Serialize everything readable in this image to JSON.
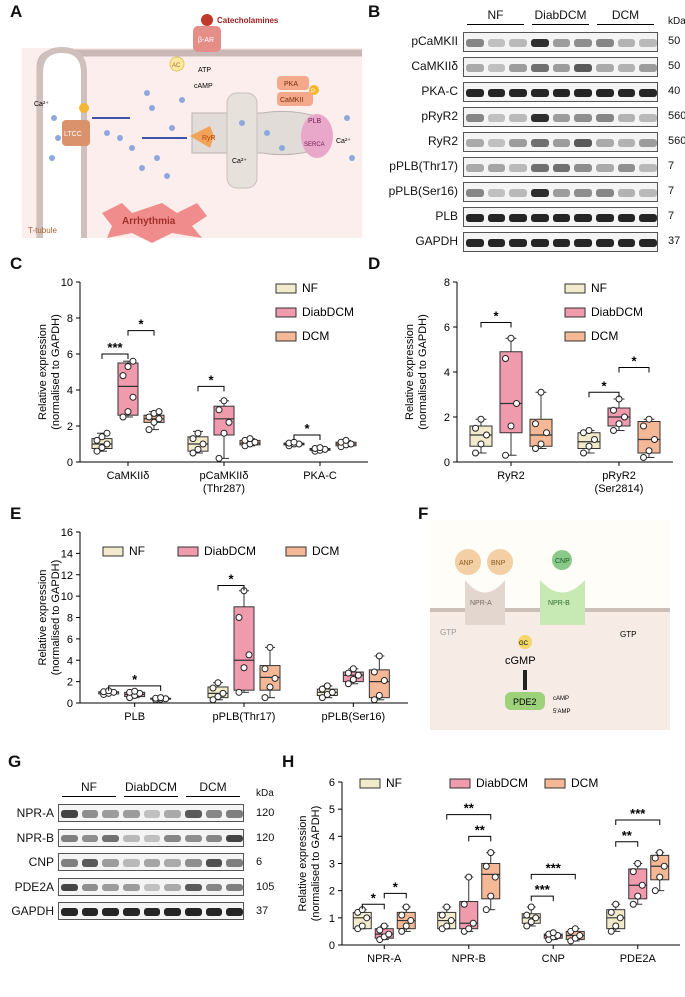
{
  "panel_letters": {
    "A": "A",
    "B": "B",
    "C": "C",
    "D": "D",
    "E": "E",
    "F": "F",
    "G": "G",
    "H": "H"
  },
  "schematic_A": {
    "catecholamines": "Catecholamines",
    "beta_ar": "β-AR",
    "ac": "AC",
    "atp": "ATP",
    "camp": "cAMP",
    "pka": "PKA",
    "camkii": "CaMKII",
    "ltcc": "LTCC",
    "ryr": "RyR",
    "plb": "PLB",
    "serca": "SERCA",
    "p": "P",
    "ca": "Ca²⁺",
    "ttubule": "T-tubule",
    "arrhythmia": "Arrhythmia"
  },
  "blot_B": {
    "groups": [
      "NF",
      "DiabDCM",
      "DCM"
    ],
    "kda": "kDa",
    "rows": [
      {
        "label": "pCaMKII",
        "kda": "50"
      },
      {
        "label": "CaMKIIδ",
        "kda": "50"
      },
      {
        "label": "PKA-C",
        "kda": "40"
      },
      {
        "label": "pRyR2",
        "kda": "560"
      },
      {
        "label": "RyR2",
        "kda": "560"
      },
      {
        "label": "pPLB(Thr17)",
        "kda": "7"
      },
      {
        "label": "pPLB(Ser16)",
        "kda": "7"
      },
      {
        "label": "PLB",
        "kda": "7"
      },
      {
        "label": "GAPDH",
        "kda": "37"
      }
    ]
  },
  "schematic_F": {
    "anp": "ANP",
    "bnp": "BNP",
    "cnp": "CNP",
    "npra": "NPR-A",
    "nprb": "NPR-B",
    "gtp": "GTP",
    "gc": "GC",
    "cgmp": "cGMP",
    "pde2": "PDE2",
    "camp": "cAMP",
    "five_amp": "5'AMP"
  },
  "blot_G": {
    "groups": [
      "NF",
      "DiabDCM",
      "DCM"
    ],
    "kda": "kDa",
    "rows": [
      {
        "label": "NPR-A",
        "kda": "120"
      },
      {
        "label": "NPR-B",
        "kda": "120"
      },
      {
        "label": "CNP",
        "kda": "6"
      },
      {
        "label": "PDE2A",
        "kda": "105"
      },
      {
        "label": "GAPDH",
        "kda": "37"
      }
    ]
  },
  "colors": {
    "NF": "#f1ebcc",
    "DiabDCM": "#ef9aad",
    "DCM": "#f5b896"
  },
  "chart_data": [
    {
      "panel": "C",
      "type": "box",
      "ylabel": "Relative expression\n(normalised to GAPDH)",
      "ylim": [
        0,
        10
      ],
      "yticks": [
        0,
        2,
        4,
        6,
        8,
        10
      ],
      "legend_position": "top-right",
      "series": [
        {
          "name": "NF"
        },
        {
          "name": "DiabDCM"
        },
        {
          "name": "DCM"
        }
      ],
      "categories": [
        "CaMKIIδ",
        "pCaMKIIδ\n(Thr287)",
        "PKA-C"
      ],
      "boxes": [
        [
          {
            "min": 0.6,
            "q1": 0.75,
            "med": 1.0,
            "q3": 1.3,
            "max": 1.6,
            "points": [
              0.6,
              0.8,
              1.0,
              1.2,
              1.4,
              1.6
            ]
          },
          {
            "min": 2.5,
            "q1": 2.6,
            "med": 4.2,
            "q3": 5.5,
            "max": 5.6,
            "points": [
              2.5,
              2.8,
              3.6,
              4.8,
              5.3,
              5.6
            ]
          },
          {
            "min": 1.8,
            "q1": 2.2,
            "med": 2.4,
            "q3": 2.6,
            "max": 2.8,
            "points": [
              1.8,
              2.2,
              2.4,
              2.5,
              2.7,
              2.8
            ]
          }
        ],
        [
          {
            "min": 0.5,
            "q1": 0.6,
            "med": 1.0,
            "q3": 1.4,
            "max": 1.7,
            "points": [
              0.5,
              0.7,
              1.0,
              1.3,
              1.6
            ]
          },
          {
            "min": 0.2,
            "q1": 1.5,
            "med": 2.4,
            "q3": 3.1,
            "max": 3.4,
            "points": [
              0.2,
              1.6,
              2.2,
              2.9,
              3.4
            ]
          },
          {
            "min": 0.9,
            "q1": 0.95,
            "med": 1.05,
            "q3": 1.2,
            "max": 1.3,
            "points": [
              0.9,
              1.0,
              1.1,
              1.2,
              1.3
            ]
          }
        ],
        [
          {
            "min": 0.9,
            "q1": 0.95,
            "med": 1.0,
            "q3": 1.05,
            "max": 1.1,
            "points": [
              0.9,
              1.0,
              1.0,
              1.05,
              1.1
            ]
          },
          {
            "min": 0.6,
            "q1": 0.65,
            "med": 0.7,
            "q3": 0.75,
            "max": 0.8,
            "points": [
              0.6,
              0.65,
              0.7,
              0.75,
              0.8
            ]
          },
          {
            "min": 0.85,
            "q1": 0.9,
            "med": 1.0,
            "q3": 1.1,
            "max": 1.2,
            "points": [
              0.85,
              0.95,
              1.0,
              1.1,
              1.2
            ]
          }
        ]
      ],
      "sig": [
        {
          "cat": 0,
          "from": 0,
          "to": 1,
          "y": 6.0,
          "label": "***"
        },
        {
          "cat": 0,
          "from": 1,
          "to": 2,
          "y": 7.3,
          "label": "*"
        },
        {
          "cat": 1,
          "from": 0,
          "to": 1,
          "y": 4.2,
          "label": "*"
        },
        {
          "cat": 2,
          "from": 0,
          "to": 1,
          "y": 1.5,
          "label": "*"
        }
      ]
    },
    {
      "panel": "D",
      "type": "box",
      "ylabel": "Relative expression\n(normalised to GAPDH)",
      "ylim": [
        0,
        8
      ],
      "yticks": [
        0,
        2,
        4,
        6,
        8
      ],
      "legend_position": "top-right",
      "series": [
        {
          "name": "NF"
        },
        {
          "name": "DiabDCM"
        },
        {
          "name": "DCM"
        }
      ],
      "categories": [
        "RyR2",
        "pRyR2\n(Ser2814)"
      ],
      "boxes": [
        [
          {
            "min": 0.4,
            "q1": 0.7,
            "med": 1.2,
            "q3": 1.6,
            "max": 1.9,
            "points": [
              0.4,
              0.8,
              1.2,
              1.5,
              1.9
            ]
          },
          {
            "min": 0.3,
            "q1": 1.3,
            "med": 2.6,
            "q3": 4.9,
            "max": 5.5,
            "points": [
              0.3,
              1.6,
              2.6,
              4.6,
              5.5
            ]
          },
          {
            "min": 0.6,
            "q1": 0.7,
            "med": 1.2,
            "q3": 1.9,
            "max": 3.1,
            "points": [
              0.6,
              0.8,
              1.3,
              1.7,
              3.1
            ]
          }
        ],
        [
          {
            "min": 0.4,
            "q1": 0.6,
            "med": 0.9,
            "q3": 1.3,
            "max": 1.4,
            "points": [
              0.4,
              0.7,
              1.0,
              1.3,
              1.4
            ]
          },
          {
            "min": 1.4,
            "q1": 1.6,
            "med": 2.0,
            "q3": 2.4,
            "max": 2.8,
            "points": [
              1.4,
              1.7,
              2.0,
              2.3,
              2.8
            ]
          },
          {
            "min": 0.2,
            "q1": 0.4,
            "med": 1.0,
            "q3": 1.8,
            "max": 1.9,
            "points": [
              0.2,
              0.5,
              1.0,
              1.6,
              1.9
            ]
          }
        ]
      ],
      "sig": [
        {
          "cat": 0,
          "from": 0,
          "to": 1,
          "y": 6.2,
          "label": "*"
        },
        {
          "cat": 1,
          "from": 0,
          "to": 1,
          "y": 3.1,
          "label": "*"
        },
        {
          "cat": 1,
          "from": 1,
          "to": 2,
          "y": 4.2,
          "label": "*"
        }
      ]
    },
    {
      "panel": "E",
      "type": "box",
      "ylabel": "Relative expression\n(normalised to GAPDH)",
      "ylim": [
        0,
        16
      ],
      "yticks": [
        0,
        2,
        4,
        6,
        8,
        10,
        12,
        14,
        16
      ],
      "legend_position": "top",
      "series": [
        {
          "name": "NF"
        },
        {
          "name": "DiabDCM"
        },
        {
          "name": "DCM"
        }
      ],
      "categories": [
        "PLB",
        "pPLB(Thr17)",
        "pPLB(Ser16)"
      ],
      "boxes": [
        [
          {
            "min": 0.8,
            "q1": 0.85,
            "med": 1.0,
            "q3": 1.05,
            "max": 1.15,
            "points": [
              0.8,
              0.9,
              1.0,
              1.05,
              1.15
            ]
          },
          {
            "min": 0.5,
            "q1": 0.6,
            "med": 0.8,
            "q3": 1.0,
            "max": 1.1,
            "points": [
              0.5,
              0.7,
              0.9,
              1.0,
              1.1
            ]
          },
          {
            "min": 0.3,
            "q1": 0.35,
            "med": 0.4,
            "q3": 0.45,
            "max": 0.5,
            "points": [
              0.3,
              0.35,
              0.4,
              0.45,
              0.5
            ]
          }
        ],
        [
          {
            "min": 0.3,
            "q1": 0.5,
            "med": 0.9,
            "q3": 1.5,
            "max": 1.9,
            "points": [
              0.3,
              0.6,
              0.9,
              1.4,
              1.9
            ]
          },
          {
            "min": 1.0,
            "q1": 1.2,
            "med": 4.0,
            "q3": 9.0,
            "max": 10.5,
            "points": [
              1.0,
              3.3,
              4.5,
              8.0,
              10.5
            ]
          },
          {
            "min": 0.5,
            "q1": 1.2,
            "med": 2.4,
            "q3": 3.5,
            "max": 5.2,
            "points": [
              0.5,
              1.5,
              2.3,
              3.2,
              5.2
            ]
          }
        ],
        [
          {
            "min": 0.5,
            "q1": 0.7,
            "med": 1.0,
            "q3": 1.3,
            "max": 1.6,
            "points": [
              0.5,
              0.8,
              1.0,
              1.3,
              1.6
            ]
          },
          {
            "min": 1.8,
            "q1": 2.0,
            "med": 2.6,
            "q3": 2.9,
            "max": 3.2,
            "points": [
              1.8,
              2.2,
              2.6,
              2.8,
              3.2
            ]
          },
          {
            "min": 0.3,
            "q1": 0.5,
            "med": 2.0,
            "q3": 3.1,
            "max": 4.4,
            "points": [
              0.3,
              0.7,
              2.1,
              2.9,
              4.4
            ]
          }
        ]
      ],
      "sig": [
        {
          "cat": 0,
          "from": 0,
          "to": 2,
          "y": 1.6,
          "label": "*"
        },
        {
          "cat": 1,
          "from": 0,
          "to": 1,
          "y": 11.0,
          "label": "*"
        }
      ]
    },
    {
      "panel": "H",
      "type": "box",
      "ylabel": "Relative expression\n(normalised to GAPDH)",
      "ylim": [
        0,
        6
      ],
      "yticks": [
        0,
        1,
        2,
        3,
        4,
        5,
        6
      ],
      "legend_position": "top",
      "series": [
        {
          "name": "NF"
        },
        {
          "name": "DiabDCM"
        },
        {
          "name": "DCM"
        }
      ],
      "categories": [
        "NPR-A",
        "NPR-B",
        "CNP",
        "PDE2A"
      ],
      "boxes": [
        [
          {
            "min": 0.6,
            "q1": 0.6,
            "med": 1.0,
            "q3": 1.2,
            "max": 1.3,
            "points": [
              0.6,
              0.7,
              1.0,
              1.2,
              1.3
            ]
          },
          {
            "min": 0.2,
            "q1": 0.25,
            "med": 0.4,
            "q3": 0.6,
            "max": 0.7,
            "points": [
              0.2,
              0.3,
              0.4,
              0.55,
              0.7
            ]
          },
          {
            "min": 0.5,
            "q1": 0.6,
            "med": 0.9,
            "q3": 1.2,
            "max": 1.4,
            "points": [
              0.5,
              0.7,
              0.9,
              1.1,
              1.4
            ]
          }
        ],
        [
          {
            "min": 0.6,
            "q1": 0.6,
            "med": 0.9,
            "q3": 1.2,
            "max": 1.4,
            "points": [
              0.6,
              0.7,
              0.9,
              1.1,
              1.4
            ]
          },
          {
            "min": 0.5,
            "q1": 0.6,
            "med": 0.8,
            "q3": 1.6,
            "max": 2.5,
            "points": [
              0.5,
              0.6,
              0.8,
              1.5,
              2.5
            ]
          },
          {
            "min": 1.3,
            "q1": 1.7,
            "med": 2.6,
            "q3": 3.0,
            "max": 3.4,
            "points": [
              1.3,
              1.8,
              2.5,
              2.9,
              3.4
            ]
          }
        ],
        [
          {
            "min": 0.7,
            "q1": 0.8,
            "med": 1.0,
            "q3": 1.15,
            "max": 1.4,
            "points": [
              0.7,
              0.85,
              1.0,
              1.1,
              1.4
            ]
          },
          {
            "min": 0.2,
            "q1": 0.25,
            "med": 0.35,
            "q3": 0.4,
            "max": 0.45,
            "points": [
              0.2,
              0.3,
              0.35,
              0.4,
              0.45
            ]
          },
          {
            "min": 0.15,
            "q1": 0.2,
            "med": 0.35,
            "q3": 0.5,
            "max": 0.6,
            "points": [
              0.15,
              0.25,
              0.35,
              0.5,
              0.6
            ]
          }
        ],
        [
          {
            "min": 0.5,
            "q1": 0.6,
            "med": 1.0,
            "q3": 1.3,
            "max": 1.5,
            "points": [
              0.5,
              0.7,
              1.0,
              1.2,
              1.5
            ]
          },
          {
            "min": 1.5,
            "q1": 1.7,
            "med": 2.2,
            "q3": 2.8,
            "max": 3.0,
            "points": [
              1.5,
              1.8,
              2.2,
              2.7,
              3.0
            ]
          },
          {
            "min": 2.0,
            "q1": 2.4,
            "med": 2.9,
            "q3": 3.3,
            "max": 3.4,
            "points": [
              2.0,
              2.5,
              2.9,
              3.2,
              3.4
            ]
          }
        ]
      ],
      "sig": [
        {
          "cat": 0,
          "from": 0,
          "to": 1,
          "y": 1.5,
          "label": "*"
        },
        {
          "cat": 0,
          "from": 1,
          "to": 2,
          "y": 1.9,
          "label": "*"
        },
        {
          "cat": 1,
          "from": 1,
          "to": 2,
          "y": 4.0,
          "label": "**"
        },
        {
          "cat": 1,
          "from": 0,
          "to": 2,
          "y": 4.8,
          "label": "**"
        },
        {
          "cat": 2,
          "from": 0,
          "to": 1,
          "y": 1.8,
          "label": "***"
        },
        {
          "cat": 2,
          "from": 0,
          "to": 2,
          "y": 2.6,
          "label": "***"
        },
        {
          "cat": 3,
          "from": 0,
          "to": 1,
          "y": 3.8,
          "label": "**"
        },
        {
          "cat": 3,
          "from": 0,
          "to": 2,
          "y": 4.6,
          "label": "***"
        }
      ]
    }
  ]
}
